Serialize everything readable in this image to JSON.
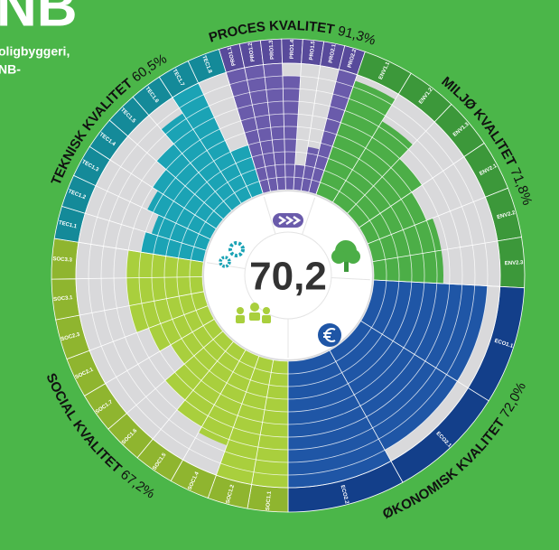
{
  "header": {
    "title": "NB",
    "lines": [
      "oligbyggeri,",
      "NB-"
    ]
  },
  "chart_data": {
    "type": "radial-bar",
    "total": 70.2,
    "total_label": "70,2",
    "rlim": [
      0,
      100
    ],
    "rticks": [
      0,
      10,
      20,
      30,
      40,
      50,
      60,
      70,
      80,
      90,
      100
    ],
    "grid": true,
    "groups": [
      {
        "name": "PROCES KVALITET",
        "score": 91.3,
        "score_label": "91,3%",
        "color": "#6a5bab",
        "band_color": "#584a9b",
        "criteria": [
          "PRO1.1",
          "PRO1.2",
          "PRO1.3",
          "PRO1.4",
          "PRO1.5",
          "PRO2.1",
          "PRO2.2"
        ],
        "values": [
          100,
          100,
          100,
          90,
          20,
          35,
          100
        ]
      },
      {
        "name": "MILJØ KVALITET",
        "score": 71.8,
        "score_label": "71,8%",
        "color": "#4cae47",
        "band_color": "#3c983a",
        "criteria": [
          "ENV1.1",
          "ENV1.2",
          "ENV1.3",
          "ENV2.1",
          "ENV2.2",
          "ENV2.3"
        ],
        "values": [
          95,
          75,
          60,
          50,
          55,
          55
        ]
      },
      {
        "name": "ØKONOMISK KVALITET",
        "score": 72.0,
        "score_label": "72,0%",
        "color": "#1f56a6",
        "band_color": "#133f8a",
        "criteria": [
          "ECO1.1",
          "ECO2.1",
          "ECO2.2"
        ],
        "values": [
          90,
          90,
          100
        ]
      },
      {
        "name": "SOCIAL KVALITET",
        "score": 67.2,
        "score_label": "67,2%",
        "color": "#a9cf3d",
        "band_color": "#8fb52f",
        "criteria": [
          "SOC1.1",
          "SOC1.2",
          "SOC1.4",
          "SOC1.5",
          "SOC1.6",
          "SOC1.7",
          "SOC2.1",
          "SOC2.3",
          "SOC3.1",
          "SOC3.3"
        ],
        "values": [
          100,
          100,
          75,
          70,
          60,
          40,
          50,
          60,
          60,
          60
        ]
      },
      {
        "name": "TEKNISK KVALITET",
        "score": 60.5,
        "score_label": "60,5%",
        "color": "#1ba3b5",
        "band_color": "#148a99",
        "criteria": [
          "TEC1.1",
          "TEC1.2",
          "TEC1.3",
          "TEC1.4",
          "TEC1.5",
          "TEC1.6",
          "TEC1.7",
          "TEC1.8"
        ],
        "values": [
          50,
          45,
          55,
          60,
          70,
          85,
          100,
          40
        ]
      }
    ]
  }
}
